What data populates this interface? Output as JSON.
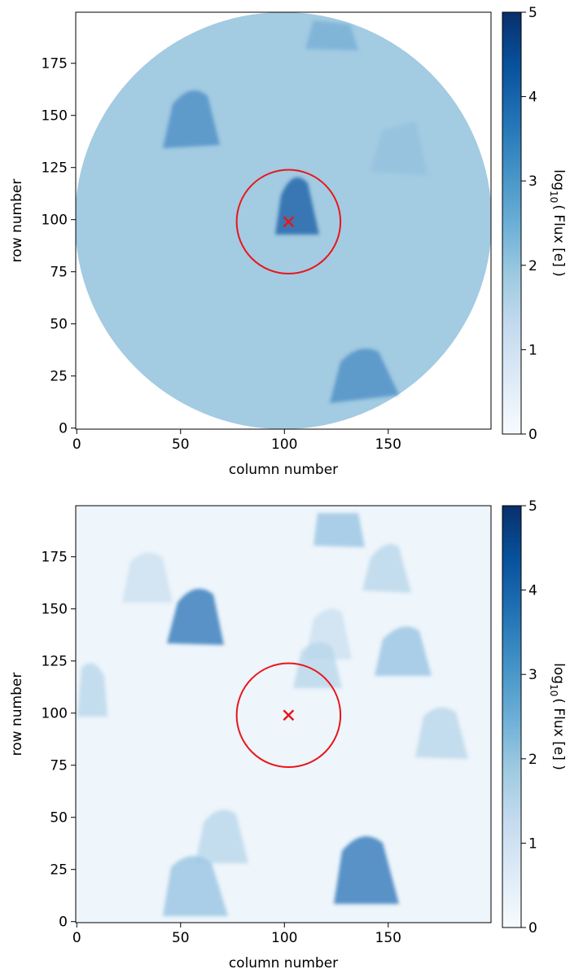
{
  "chart_data": [
    {
      "type": "image",
      "xlabel": "column number",
      "ylabel": "row number",
      "xlim": [
        -0.5,
        199.5
      ],
      "ylim": [
        -0.5,
        199.5
      ],
      "xticks": [
        0,
        50,
        100,
        150
      ],
      "yticks": [
        0,
        25,
        50,
        75,
        100,
        125,
        150,
        175
      ],
      "colorbar": {
        "label_base": "log",
        "label_sub": "10",
        "label_rest": "( Flux [e] )",
        "lim": [
          0,
          5
        ],
        "ticks": [
          0,
          1,
          2,
          3,
          4,
          5
        ],
        "colors": [
          "#f7fbff",
          "#deebf7",
          "#c6dbef",
          "#9ecae1",
          "#6baed6",
          "#4292c6",
          "#2171b5",
          "#08519c",
          "#08306b"
        ]
      },
      "aperture": {
        "x": 102,
        "y": 99,
        "radius": 25,
        "color": "#e8161b"
      },
      "target": {
        "x": 102,
        "y": 99,
        "marker": "x",
        "color": "#e8161b"
      }
    },
    {
      "type": "image",
      "xlabel": "column number",
      "ylabel": "row number",
      "xlim": [
        -0.5,
        199.5
      ],
      "ylim": [
        -0.5,
        199.5
      ],
      "xticks": [
        0,
        50,
        100,
        150
      ],
      "yticks": [
        0,
        25,
        50,
        75,
        100,
        125,
        150,
        175
      ],
      "colorbar": {
        "label_base": "log",
        "label_sub": "10",
        "label_rest": "( Flux [e] )",
        "lim": [
          0,
          5
        ],
        "ticks": [
          0,
          1,
          2,
          3,
          4,
          5
        ],
        "colors": [
          "#f7fbff",
          "#deebf7",
          "#c6dbef",
          "#9ecae1",
          "#6baed6",
          "#4292c6",
          "#2171b5",
          "#08519c",
          "#08306b"
        ]
      },
      "aperture": {
        "x": 102,
        "y": 99,
        "radius": 25,
        "color": "#e8161b"
      },
      "target": {
        "x": 102,
        "y": 99,
        "marker": "x",
        "color": "#e8161b"
      }
    }
  ]
}
